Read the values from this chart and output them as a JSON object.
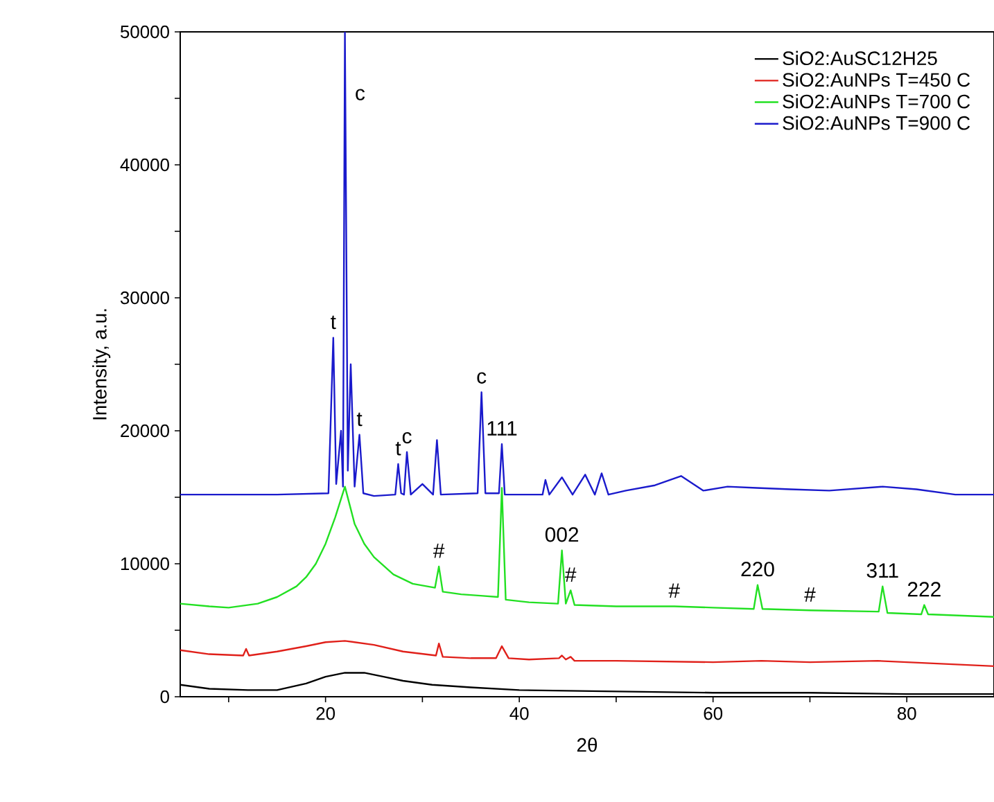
{
  "chart_data": {
    "type": "line",
    "xlabel": "2θ",
    "ylabel": "Intensity, a.u.",
    "xlim": [
      5,
      89
    ],
    "ylim": [
      0,
      50000
    ],
    "xticks": [
      {
        "value": 10,
        "label": null
      },
      20,
      {
        "value": 30,
        "label": null
      },
      40,
      {
        "value": 50,
        "label": null
      },
      60,
      {
        "value": 70,
        "label": null
      },
      80
    ],
    "yticks": [
      0,
      {
        "value": 5000,
        "label": null
      },
      10000,
      {
        "value": 15000,
        "label": null
      },
      20000,
      {
        "value": 25000,
        "label": null
      },
      30000,
      {
        "value": 35000,
        "label": null
      },
      40000,
      {
        "value": 45000,
        "label": null
      },
      50000
    ],
    "legend": "top right",
    "grid": false,
    "marker": "none",
    "line_style": "solid",
    "series": [
      {
        "name": "SiO2:AuSC12H25",
        "color": "#000000",
        "x": [
          5,
          8,
          12,
          15,
          18,
          20,
          22,
          24,
          26,
          28,
          31,
          35,
          40,
          50,
          60,
          70,
          80,
          89
        ],
        "values": [
          900,
          600,
          500,
          500,
          1000,
          1500,
          1800,
          1800,
          1500,
          1200,
          900,
          700,
          500,
          400,
          300,
          300,
          200,
          200
        ]
      },
      {
        "name": "SiO2:AuNPs T=450 C",
        "color": "#e0201a",
        "x": [
          5,
          8,
          11.5,
          11.8,
          12.1,
          15,
          18,
          20,
          22,
          25,
          28,
          31.4,
          31.7,
          32.1,
          35,
          37.6,
          38.2,
          38.9,
          41,
          44.1,
          44.4,
          44.8,
          45.3,
          45.7,
          50,
          60,
          65,
          70,
          77,
          89
        ],
        "values": [
          3500,
          3200,
          3100,
          3600,
          3100,
          3400,
          3800,
          4100,
          4200,
          3900,
          3400,
          3100,
          4000,
          3000,
          2900,
          2900,
          3800,
          2900,
          2800,
          2900,
          3100,
          2800,
          3000,
          2700,
          2700,
          2600,
          2700,
          2600,
          2700,
          2300
        ]
      },
      {
        "name": "SiO2:AuNPs T=700 C",
        "color": "#22e022",
        "x": [
          5,
          8,
          10,
          13,
          15,
          17,
          18,
          19,
          20,
          21,
          22,
          23,
          24,
          25,
          27,
          29,
          31.3,
          31.7,
          32.1,
          34,
          36,
          37.8,
          38.2,
          38.6,
          41,
          44,
          44.4,
          44.8,
          45.3,
          45.7,
          50,
          56,
          60,
          64.2,
          64.6,
          65.1,
          70,
          77.1,
          77.5,
          78,
          81.5,
          81.8,
          82.2,
          89
        ],
        "values": [
          7000,
          6800,
          6700,
          7000,
          7500,
          8300,
          9000,
          10000,
          11500,
          13500,
          15800,
          13000,
          11500,
          10500,
          9200,
          8500,
          8200,
          9800,
          7900,
          7700,
          7600,
          7500,
          15700,
          7300,
          7100,
          7000,
          11000,
          7000,
          8000,
          6900,
          6800,
          6800,
          6700,
          6600,
          8400,
          6600,
          6500,
          6400,
          8300,
          6300,
          6200,
          6900,
          6200,
          6000
        ]
      },
      {
        "name": "SiO2:AuNPs T=900 C",
        "color": "#1a1acc",
        "x": [
          5,
          15,
          20.3,
          20.8,
          21.1,
          21.6,
          21.8,
          22.0,
          22.3,
          22.6,
          23.0,
          23.5,
          23.9,
          25,
          27.2,
          27.5,
          27.8,
          28.1,
          28.4,
          28.8,
          30.0,
          31.1,
          31.5,
          31.9,
          35.7,
          36.1,
          36.5,
          37.9,
          38.2,
          38.5,
          42.4,
          42.7,
          43.1,
          44.4,
          45.5,
          46.8,
          47.8,
          48.5,
          49.2,
          51,
          54,
          56.7,
          59,
          61.5,
          64.5,
          68,
          72,
          77.5,
          81,
          85,
          89
        ],
        "values": [
          15200,
          15200,
          15300,
          27000,
          16000,
          20000,
          15800,
          50000,
          17000,
          25000,
          15800,
          19700,
          15300,
          15100,
          15200,
          17500,
          15300,
          15200,
          18400,
          15200,
          16000,
          15200,
          19300,
          15200,
          15300,
          22900,
          15300,
          15300,
          19000,
          15200,
          15200,
          16300,
          15200,
          16500,
          15200,
          16700,
          15200,
          16800,
          15200,
          15500,
          15900,
          16600,
          15500,
          15800,
          15700,
          15600,
          15500,
          15800,
          15600,
          15200,
          15200
        ]
      }
    ],
    "annotations": [
      {
        "text": "t",
        "x": 20.8,
        "y": 27000
      },
      {
        "text": "c",
        "x": 22.0,
        "y": 50000
      },
      {
        "text": "t",
        "x": 23.5,
        "y": 19700
      },
      {
        "text": "t",
        "x": 27.5,
        "y": 17500
      },
      {
        "text": "c",
        "x": 28.4,
        "y": 18400
      },
      {
        "text": "c",
        "x": 36.1,
        "y": 22900
      },
      {
        "text": "111",
        "x": 38.2,
        "y": 19000
      },
      {
        "text": "#",
        "x": 31.7,
        "y": 9800
      },
      {
        "text": "002",
        "x": 44.4,
        "y": 11000
      },
      {
        "text": "#",
        "x": 45.3,
        "y": 8000
      },
      {
        "text": "#",
        "x": 56,
        "y": 6800
      },
      {
        "text": "220",
        "x": 64.6,
        "y": 8400
      },
      {
        "text": "#",
        "x": 70,
        "y": 6500
      },
      {
        "text": "311",
        "x": 77.5,
        "y": 8300
      },
      {
        "text": "222",
        "x": 81.8,
        "y": 6900
      }
    ]
  }
}
